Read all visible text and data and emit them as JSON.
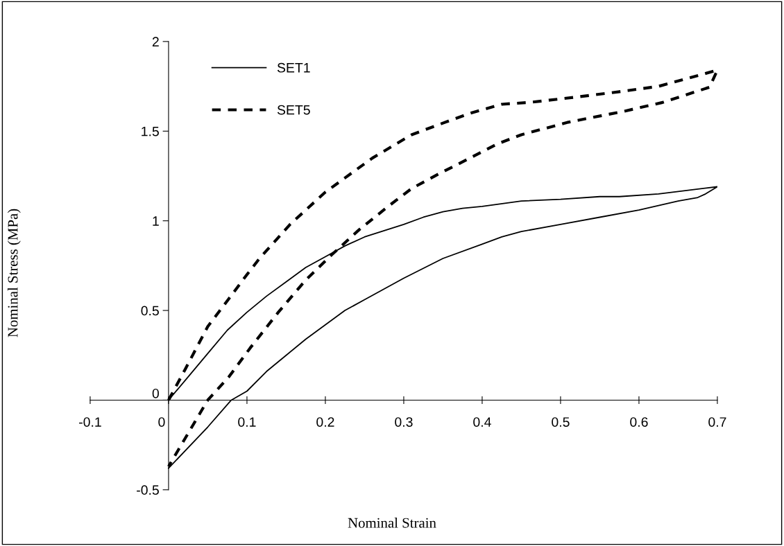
{
  "chart_data": {
    "type": "line",
    "xlabel": "Nominal Strain",
    "ylabel": "Nominal Stress (MPa)",
    "xlim": [
      -0.1,
      0.7
    ],
    "ylim": [
      -0.5,
      2
    ],
    "xticks": [
      -0.1,
      0,
      0.1,
      0.2,
      0.3,
      0.4,
      0.5,
      0.6,
      0.7
    ],
    "yticks": [
      -0.5,
      0,
      0.5,
      1,
      1.5,
      2
    ],
    "grid": false,
    "legend": "top left",
    "marker": "none",
    "series": [
      {
        "name": "SET1",
        "color": "#000000",
        "line_style": "solid",
        "x": [
          0,
          0.025,
          0.05,
          0.075,
          0.1,
          0.125,
          0.15,
          0.175,
          0.2,
          0.225,
          0.25,
          0.3,
          0.325,
          0.35,
          0.375,
          0.4,
          0.45,
          0.5,
          0.55,
          0.575,
          0.625,
          0.7,
          0.685,
          0.675,
          0.65,
          0.6,
          0.55,
          0.5,
          0.45,
          0.425,
          0.4,
          0.35,
          0.3,
          0.25,
          0.225,
          0.2,
          0.175,
          0.15,
          0.125,
          0.1,
          0.08,
          0.05,
          0
        ],
        "values": [
          0,
          0.13,
          0.26,
          0.39,
          0.49,
          0.58,
          0.66,
          0.74,
          0.8,
          0.86,
          0.91,
          0.98,
          1.02,
          1.05,
          1.07,
          1.08,
          1.11,
          1.12,
          1.135,
          1.135,
          1.15,
          1.19,
          1.15,
          1.13,
          1.11,
          1.06,
          1.02,
          0.98,
          0.94,
          0.91,
          0.87,
          0.79,
          0.68,
          0.56,
          0.5,
          0.42,
          0.34,
          0.25,
          0.16,
          0.05,
          0,
          -0.15,
          -0.38
        ]
      },
      {
        "name": "SET5",
        "color": "#000000",
        "line_style": "dashed",
        "x": [
          0,
          0.021,
          0.05,
          0.076,
          0.1,
          0.116,
          0.155,
          0.2,
          0.26,
          0.31,
          0.35,
          0.385,
          0.425,
          0.46,
          0.5,
          0.52,
          0.575,
          0.625,
          0.7,
          0.69,
          0.63,
          0.58,
          0.51,
          0.45,
          0.42,
          0.38,
          0.344,
          0.31,
          0.28,
          0.243,
          0.208,
          0.175,
          0.14,
          0.104,
          0.077,
          0.05,
          0
        ],
        "values": [
          0,
          0.17,
          0.41,
          0.56,
          0.7,
          0.79,
          0.98,
          1.16,
          1.35,
          1.48,
          1.545,
          1.6,
          1.65,
          1.66,
          1.68,
          1.69,
          1.72,
          1.75,
          1.84,
          1.745,
          1.66,
          1.61,
          1.55,
          1.48,
          1.43,
          1.34,
          1.26,
          1.18,
          1.08,
          0.95,
          0.81,
          0.67,
          0.49,
          0.29,
          0.13,
          0,
          -0.37
        ]
      }
    ]
  }
}
